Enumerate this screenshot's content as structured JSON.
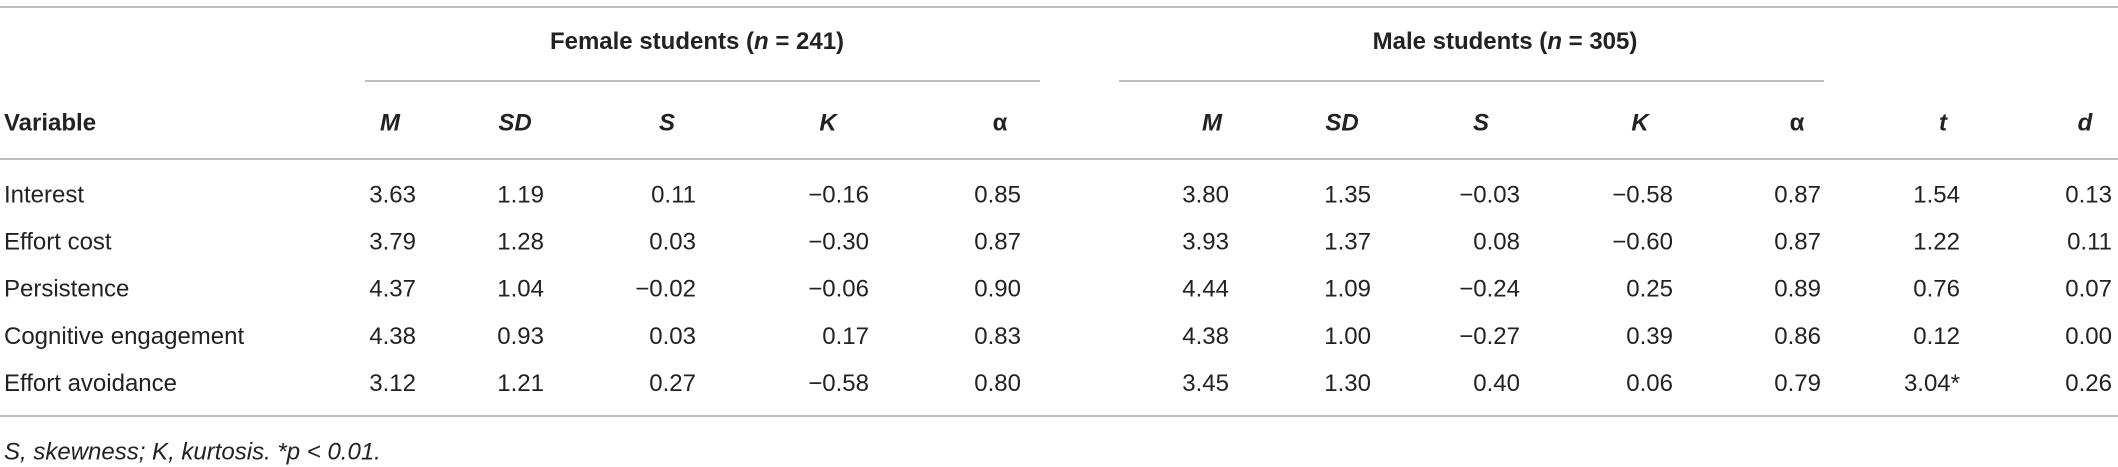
{
  "table": {
    "group_headers": [
      {
        "text": "Female students (",
        "symbol": "n",
        "rest": " = 241)"
      },
      {
        "text": "Male students (",
        "symbol": "n",
        "rest": " = 305)"
      }
    ],
    "columns": [
      "Variable",
      "M",
      "SD",
      "S",
      "K",
      "α",
      "M",
      "SD",
      "S",
      "K",
      "α",
      "t",
      "d"
    ],
    "rows": [
      [
        "Interest",
        "3.63",
        "1.19",
        "0.11",
        "−0.16",
        "0.85",
        "3.80",
        "1.35",
        "−0.03",
        "−0.58",
        "0.87",
        "1.54",
        "0.13"
      ],
      [
        "Effort cost",
        "3.79",
        "1.28",
        "0.03",
        "−0.30",
        "0.87",
        "3.93",
        "1.37",
        "0.08",
        "−0.60",
        "0.87",
        "1.22",
        "0.11"
      ],
      [
        "Persistence",
        "4.37",
        "1.04",
        "−0.02",
        "−0.06",
        "0.90",
        "4.44",
        "1.09",
        "−0.24",
        "0.25",
        "0.89",
        "0.76",
        "0.07"
      ],
      [
        "Cognitive engagement",
        "4.38",
        "0.93",
        "0.03",
        "0.17",
        "0.83",
        "4.38",
        "1.00",
        "−0.27",
        "0.39",
        "0.86",
        "0.12",
        "0.00"
      ],
      [
        "Effort avoidance",
        "3.12",
        "1.21",
        "0.27",
        "−0.58",
        "0.80",
        "3.45",
        "1.30",
        "0.40",
        "0.06",
        "0.79",
        "3.04*",
        "0.26"
      ]
    ],
    "footnote": "S, skewness; K, kurtosis. *p < 0.01."
  }
}
